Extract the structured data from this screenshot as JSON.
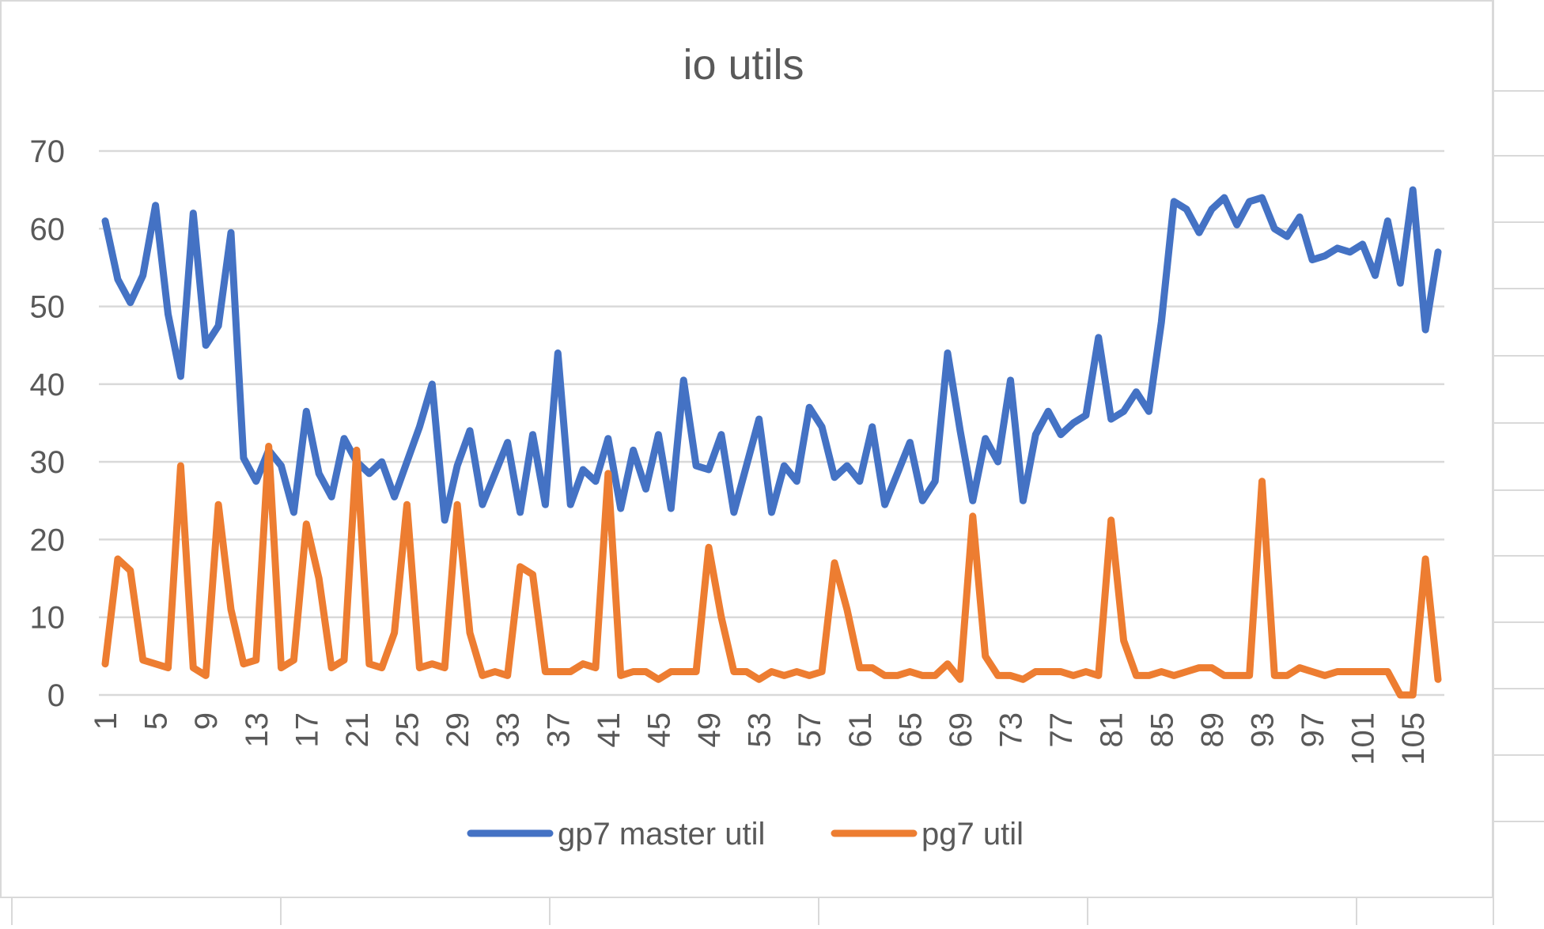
{
  "chart_data": {
    "type": "line",
    "title": "io utils",
    "xlabel": "",
    "ylabel": "",
    "ylim": [
      0,
      70
    ],
    "yticks": [
      0,
      10,
      20,
      30,
      40,
      50,
      60,
      70
    ],
    "x": [
      1,
      2,
      3,
      4,
      5,
      6,
      7,
      8,
      9,
      10,
      11,
      12,
      13,
      14,
      15,
      16,
      17,
      18,
      19,
      20,
      21,
      22,
      23,
      24,
      25,
      26,
      27,
      28,
      29,
      30,
      31,
      32,
      33,
      34,
      35,
      36,
      37,
      38,
      39,
      40,
      41,
      42,
      43,
      44,
      45,
      46,
      47,
      48,
      49,
      50,
      51,
      52,
      53,
      54,
      55,
      56,
      57,
      58,
      59,
      60,
      61,
      62,
      63,
      64,
      65,
      66,
      67,
      68,
      69,
      70,
      71,
      72,
      73,
      74,
      75,
      76,
      77,
      78,
      79,
      80,
      81,
      82,
      83,
      84,
      85,
      86,
      87,
      88,
      89,
      90,
      91,
      92,
      93,
      94,
      95,
      96,
      97,
      98,
      99,
      100,
      101,
      102,
      103,
      104,
      105,
      106,
      107
    ],
    "xtick_labels": [
      "1",
      "5",
      "9",
      "13",
      "17",
      "21",
      "25",
      "29",
      "33",
      "37",
      "41",
      "45",
      "49",
      "53",
      "57",
      "61",
      "65",
      "69",
      "73",
      "77",
      "81",
      "85",
      "89",
      "93",
      "97",
      "101",
      "105"
    ],
    "grid": true,
    "legend_position": "bottom",
    "series": [
      {
        "name": "gp7 master util",
        "color": "#4472c4",
        "values": [
          61,
          53.5,
          50.5,
          54,
          63,
          49,
          41,
          62,
          45,
          47.5,
          59.5,
          30.5,
          27.5,
          31.5,
          29.5,
          23.5,
          36.5,
          28.5,
          25.5,
          33,
          30,
          28.5,
          30,
          25.5,
          30,
          34.5,
          40,
          22.5,
          29.5,
          34,
          24.5,
          28.5,
          32.5,
          23.5,
          33.5,
          24.5,
          44,
          24.5,
          29,
          27.5,
          33,
          24,
          31.5,
          26.5,
          33.5,
          24,
          40.5,
          29.5,
          29,
          33.5,
          23.5,
          29.5,
          35.5,
          23.5,
          29.5,
          27.5,
          37,
          34.5,
          28,
          29.5,
          27.5,
          34.5,
          24.5,
          28.5,
          32.5,
          25,
          27.5,
          44,
          34,
          25,
          33,
          30,
          40.5,
          25,
          33.5,
          36.5,
          33.5,
          35,
          36,
          46,
          35.5,
          36.5,
          39,
          36.5,
          48,
          63.5,
          62.5,
          59.5,
          62.5,
          64,
          60.5,
          63.5,
          64,
          60,
          59,
          61.5,
          56,
          56.5,
          57.5,
          57,
          58,
          54,
          61,
          53,
          65,
          47,
          57
        ]
      },
      {
        "name": "pg7 util",
        "color": "#ed7d31",
        "values": [
          4,
          17.5,
          16,
          4.5,
          4,
          3.5,
          29.5,
          3.5,
          2.5,
          24.5,
          11,
          4,
          4.5,
          32,
          3.5,
          4.5,
          22,
          15,
          3.5,
          4.5,
          31.5,
          4,
          3.5,
          8,
          24.5,
          3.5,
          4,
          3.5,
          24.5,
          8,
          2.5,
          3,
          2.5,
          16.5,
          15.5,
          3,
          3,
          3,
          4,
          3.5,
          28.5,
          2.5,
          3,
          3,
          2,
          3,
          3,
          3,
          19,
          10,
          3,
          3,
          2,
          3,
          2.5,
          3,
          2.5,
          3,
          17,
          11,
          3.5,
          3.5,
          2.5,
          2.5,
          3,
          2.5,
          2.5,
          4,
          2,
          23,
          5,
          2.5,
          2.5,
          2,
          3,
          3,
          3,
          2.5,
          3,
          2.5,
          22.5,
          7,
          2.5,
          2.5,
          3,
          2.5,
          3,
          3.5,
          3.5,
          2.5,
          2.5,
          2.5,
          27.5,
          2.5,
          2.5,
          3.5,
          3,
          2.5,
          3,
          3,
          3,
          3,
          3,
          0,
          0,
          17.5,
          2
        ]
      }
    ]
  }
}
